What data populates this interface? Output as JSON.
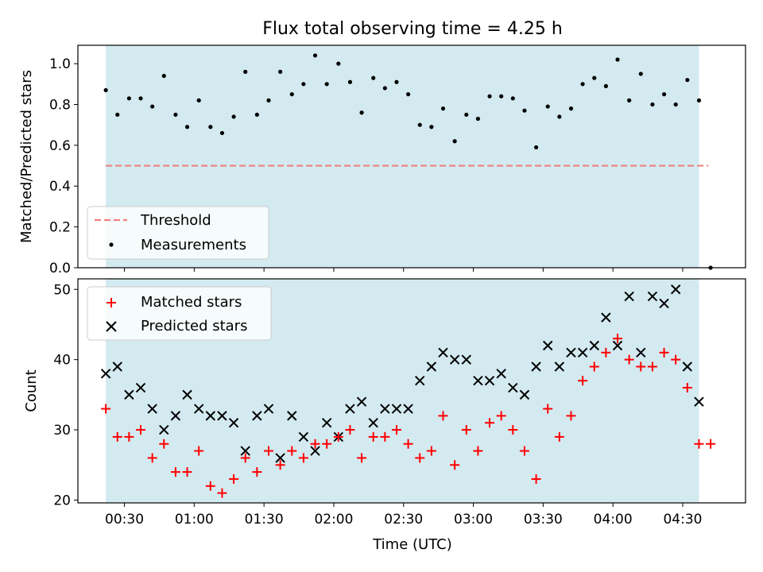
{
  "chart_data": [
    {
      "type": "scatter",
      "title": "Flux total observing time = 4.25 h",
      "ylabel": "Matched/Predicted stars",
      "ylim": [
        0,
        1.09
      ],
      "yticks": [
        0.0,
        0.2,
        0.4,
        0.6,
        0.8,
        1.0
      ],
      "ytick_labels": [
        "0.0",
        "0.2",
        "0.4",
        "0.6",
        "0.8",
        "1.0"
      ],
      "x_unit": "minutes UTC",
      "xlim": [
        10,
        297
      ],
      "observing_window": [
        22,
        277
      ],
      "threshold": {
        "y": 0.5,
        "x_range": [
          22,
          281
        ],
        "color": "#f08080"
      },
      "legend": {
        "position": "lower-left",
        "entries": [
          "Threshold",
          "Measurements"
        ]
      },
      "grid": false,
      "colors": {
        "shade": "#d3eaf0",
        "measurement": "#000000"
      },
      "series": [
        {
          "name": "Measurements",
          "x": [
            22,
            27,
            32,
            37,
            42,
            47,
            52,
            57,
            62,
            67,
            72,
            77,
            82,
            87,
            92,
            97,
            102,
            107,
            112,
            117,
            122,
            127,
            132,
            137,
            142,
            147,
            152,
            157,
            162,
            167,
            172,
            177,
            182,
            187,
            192,
            197,
            202,
            207,
            212,
            217,
            222,
            227,
            232,
            237,
            242,
            247,
            252,
            257,
            262,
            267,
            272,
            277,
            282
          ],
          "y": [
            0.87,
            0.75,
            0.83,
            0.83,
            0.79,
            0.94,
            0.75,
            0.69,
            0.82,
            0.69,
            0.66,
            0.74,
            0.96,
            0.75,
            0.82,
            0.96,
            0.85,
            0.9,
            1.04,
            0.9,
            1.0,
            0.91,
            0.76,
            0.93,
            0.88,
            0.91,
            0.85,
            0.7,
            0.69,
            0.78,
            0.62,
            0.75,
            0.73,
            0.84,
            0.84,
            0.83,
            0.77,
            0.59,
            0.79,
            0.74,
            0.78,
            0.9,
            0.93,
            0.89,
            1.02,
            0.82,
            0.95,
            0.8,
            0.85,
            0.8,
            0.92,
            0.82,
            0.0
          ]
        }
      ]
    },
    {
      "type": "scatter",
      "xlabel": "Time (UTC)",
      "ylabel": "Count",
      "ylim": [
        19.6,
        51.5
      ],
      "yticks": [
        20,
        30,
        40,
        50
      ],
      "ytick_labels": [
        "20",
        "30",
        "40",
        "50"
      ],
      "x_unit": "minutes UTC",
      "xlim": [
        10,
        297
      ],
      "xticks": [
        30,
        60,
        90,
        120,
        150,
        180,
        210,
        240,
        270
      ],
      "xtick_labels": [
        "00:30",
        "01:00",
        "01:30",
        "02:00",
        "02:30",
        "03:00",
        "03:30",
        "04:00",
        "04:30"
      ],
      "observing_window": [
        22,
        277
      ],
      "legend": {
        "position": "upper-left",
        "entries": [
          "Matched stars",
          "Predicted stars"
        ]
      },
      "grid": false,
      "colors": {
        "shade": "#d3eaf0",
        "matched": "#ff0000",
        "predicted": "#000000"
      },
      "x": [
        22,
        27,
        32,
        37,
        42,
        47,
        52,
        57,
        62,
        67,
        72,
        77,
        82,
        87,
        92,
        97,
        102,
        107,
        112,
        117,
        122,
        127,
        132,
        137,
        142,
        147,
        152,
        157,
        162,
        167,
        172,
        177,
        182,
        187,
        192,
        197,
        202,
        207,
        212,
        217,
        222,
        227,
        232,
        237,
        242,
        247,
        252,
        257,
        262,
        267,
        272,
        277,
        282
      ],
      "series": [
        {
          "name": "Matched stars",
          "values": [
            33,
            29,
            29,
            30,
            26,
            28,
            24,
            24,
            27,
            22,
            21,
            23,
            26,
            24,
            27,
            25,
            27,
            26,
            28,
            28,
            29,
            30,
            26,
            29,
            29,
            30,
            28,
            26,
            27,
            32,
            25,
            30,
            27,
            31,
            32,
            30,
            27,
            23,
            33,
            29,
            32,
            37,
            39,
            41,
            43,
            40,
            39,
            39,
            41,
            40,
            36,
            28,
            28
          ]
        },
        {
          "name": "Predicted stars",
          "values": [
            38,
            39,
            35,
            36,
            33,
            30,
            32,
            35,
            33,
            32,
            32,
            31,
            27,
            32,
            33,
            26,
            32,
            29,
            27,
            31,
            29,
            33,
            34,
            31,
            33,
            33,
            33,
            37,
            39,
            41,
            40,
            40,
            37,
            37,
            38,
            36,
            35,
            39,
            42,
            39,
            41,
            41,
            42,
            46,
            42,
            49,
            41,
            49,
            48,
            50,
            39,
            34,
            null
          ]
        }
      ]
    }
  ]
}
